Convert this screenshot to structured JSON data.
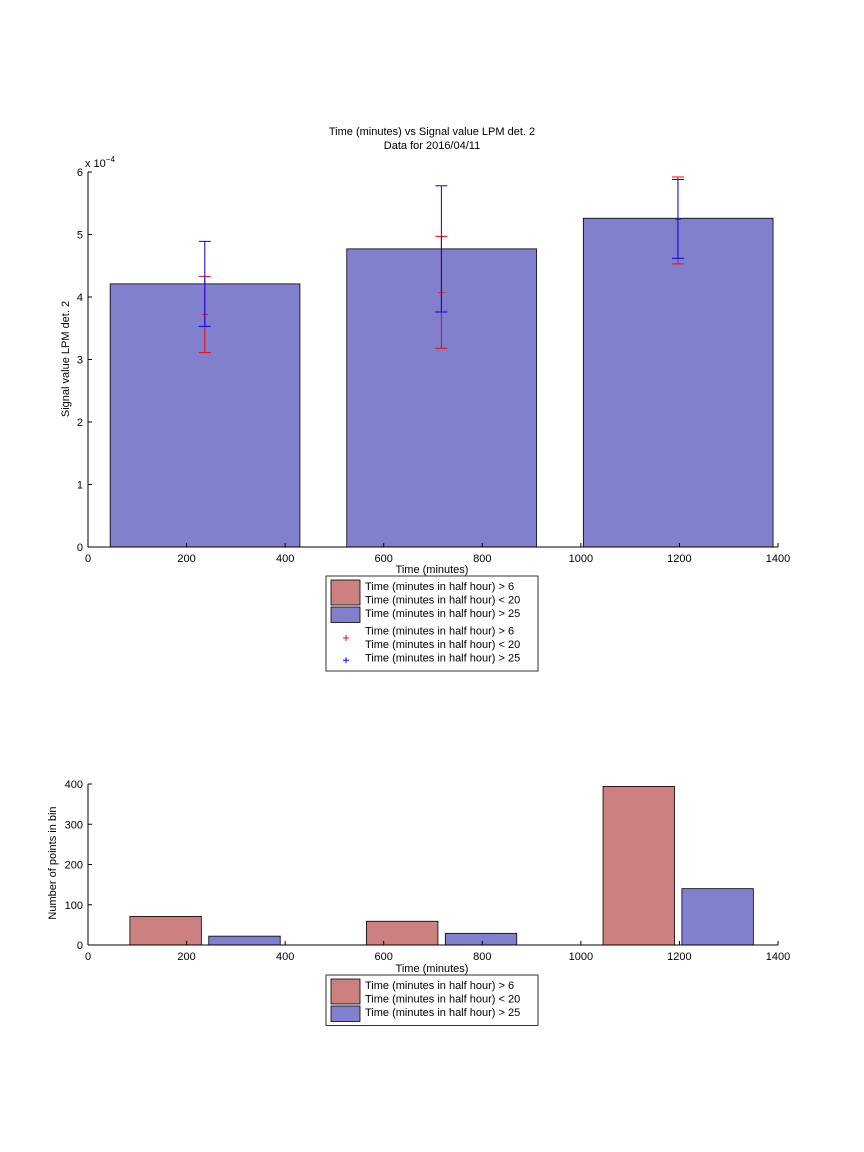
{
  "chart_data": [
    {
      "type": "bar",
      "title": "Time (minutes) vs Signal value LPM det. 2",
      "subtitle": "Data for 2016/04/11",
      "xlabel": "Time (minutes)",
      "ylabel": "Signal value LPM det. 2",
      "y_exponent": "x 10",
      "y_exponent_power": "−4",
      "xlim": [
        0,
        1400
      ],
      "ylim": [
        0,
        6
      ],
      "x_ticks": [
        "0",
        "200",
        "400",
        "600",
        "800",
        "1000",
        "1200",
        "1400"
      ],
      "y_ticks": [
        "0",
        "1",
        "2",
        "3",
        "4",
        "5",
        "6"
      ],
      "grid": false,
      "series": [
        {
          "name": "Time (minutes in half hour) > 25",
          "color": "#8080cc",
          "bars": [
            {
              "x_start": 45,
              "x_end": 430,
              "value": 4.21
            },
            {
              "x_start": 525,
              "x_end": 910,
              "value": 4.77
            },
            {
              "x_start": 1005,
              "x_end": 1390,
              "value": 5.26
            }
          ]
        }
      ],
      "error_bars": [
        {
          "name": "Time (minutes in half hour) > 6 / Time (minutes in half hour) < 20",
          "color": "#ff0000",
          "points": [
            {
              "x": 237,
              "low": 3.11,
              "high": 4.33,
              "mean": 3.72
            },
            {
              "x": 717,
              "low": 3.18,
              "high": 4.97,
              "mean": 4.07
            },
            {
              "x": 1197,
              "low": 4.53,
              "high": 5.92,
              "mean": 5.24
            }
          ]
        },
        {
          "name": "Time (minutes in half hour) > 25",
          "color": "#0000ff",
          "points": [
            {
              "x": 237,
              "low": 3.53,
              "high": 4.89
            },
            {
              "x": 717,
              "low": 3.76,
              "high": 5.78
            },
            {
              "x": 1197,
              "low": 4.62,
              "high": 5.88
            }
          ]
        }
      ],
      "legend": {
        "placement": "below",
        "entries": [
          {
            "line1": "Time (minutes in half hour) > 6",
            "line2": "Time (minutes in half hour) < 20",
            "marker": "patch",
            "color": "#cc8080"
          },
          {
            "line1": "Time (minutes in half hour) > 25",
            "line2": "",
            "marker": "patch",
            "color": "#8080cc"
          },
          {
            "line1": "Time (minutes in half hour) > 6",
            "line2": "Time (minutes in half hour) < 20",
            "marker": "plus",
            "color": "#ff0000"
          },
          {
            "line1": "Time (minutes in half hour) > 25",
            "line2": "",
            "marker": "plus",
            "color": "#0000ff"
          }
        ]
      }
    },
    {
      "type": "bar",
      "title": "",
      "xlabel": "Time (minutes)",
      "ylabel": "Number of points in bin",
      "xlim": [
        0,
        1400
      ],
      "ylim": [
        0,
        400
      ],
      "x_ticks": [
        "0",
        "200",
        "400",
        "600",
        "800",
        "1000",
        "1200",
        "1400"
      ],
      "y_ticks": [
        "0",
        "100",
        "200",
        "300",
        "400"
      ],
      "grid": false,
      "series": [
        {
          "name": "Time (minutes in half hour) > 6 / Time (minutes in half hour) < 20",
          "color": "#cc8080",
          "bars": [
            {
              "x_start": 85,
              "x_end": 230,
              "value": 71
            },
            {
              "x_start": 565,
              "x_end": 710,
              "value": 59
            },
            {
              "x_start": 1045,
              "x_end": 1190,
              "value": 394
            }
          ]
        },
        {
          "name": "Time (minutes in half hour) > 25",
          "color": "#8080cc",
          "bars": [
            {
              "x_start": 245,
              "x_end": 390,
              "value": 22
            },
            {
              "x_start": 725,
              "x_end": 870,
              "value": 29
            },
            {
              "x_start": 1205,
              "x_end": 1350,
              "value": 140
            }
          ]
        }
      ],
      "legend": {
        "placement": "below",
        "entries": [
          {
            "line1": "Time (minutes in half hour) > 6",
            "line2": "Time (minutes in half hour) < 20",
            "marker": "patch",
            "color": "#cc8080"
          },
          {
            "line1": "Time (minutes in half hour) > 25",
            "line2": "",
            "marker": "patch",
            "color": "#8080cc"
          }
        ]
      }
    }
  ]
}
